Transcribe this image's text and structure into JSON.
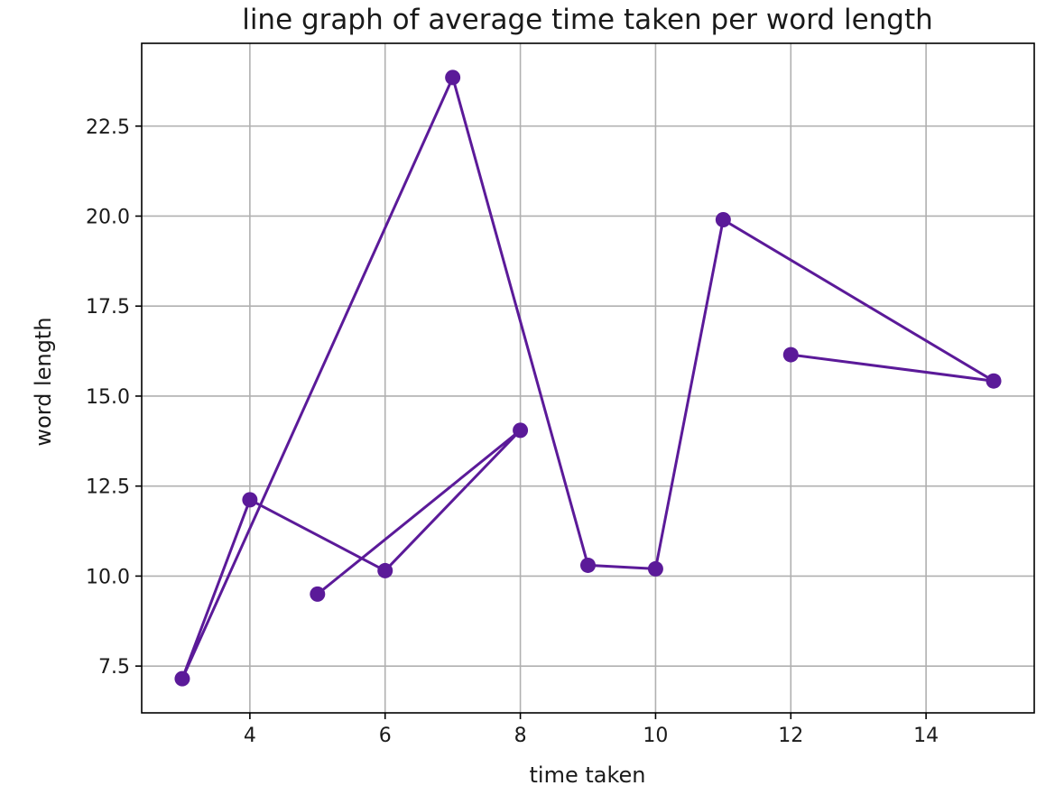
{
  "chart_data": {
    "type": "line",
    "title": "line graph of average time taken per word length",
    "xlabel": "time taken",
    "ylabel": "word length",
    "xlim": [
      2.4,
      15.6
    ],
    "ylim": [
      6.2,
      24.8
    ],
    "xticks": [
      4,
      6,
      8,
      10,
      12,
      14
    ],
    "xtick_labels": [
      "4",
      "6",
      "8",
      "10",
      "12",
      "14"
    ],
    "yticks": [
      7.5,
      10.0,
      12.5,
      15.0,
      17.5,
      20.0,
      22.5
    ],
    "ytick_labels": [
      "7.5",
      "10.0",
      "12.5",
      "15.0",
      "17.5",
      "20.0",
      "22.5"
    ],
    "grid": true,
    "color": "#5b1a99",
    "series": [
      {
        "points": [
          {
            "x": 5,
            "y": 9.5
          },
          {
            "x": 8,
            "y": 14.05
          },
          {
            "x": 6,
            "y": 10.15
          },
          {
            "x": 4,
            "y": 12.12
          },
          {
            "x": 3,
            "y": 7.15
          },
          {
            "x": 7,
            "y": 23.85
          },
          {
            "x": 9,
            "y": 10.3
          },
          {
            "x": 10,
            "y": 10.2
          },
          {
            "x": 11,
            "y": 19.9
          },
          {
            "x": 15,
            "y": 15.42
          },
          {
            "x": 12,
            "y": 16.15
          }
        ]
      }
    ]
  }
}
